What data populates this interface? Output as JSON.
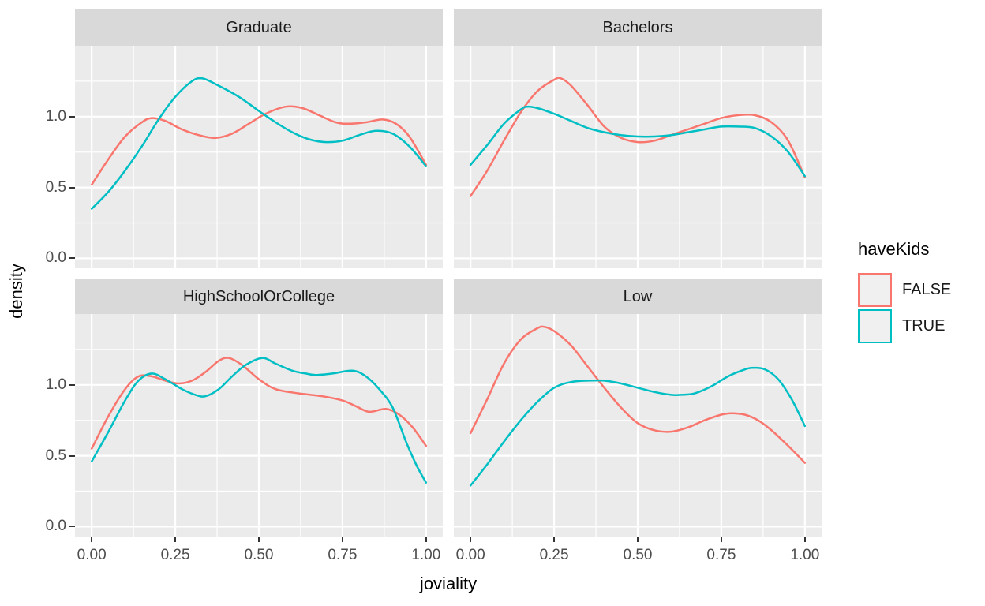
{
  "chart_data": {
    "type": "line",
    "subtype": "density-facets",
    "xlabel": "joviality",
    "ylabel": "density",
    "xlim": [
      -0.05,
      1.05
    ],
    "ylim": [
      -0.07,
      1.5
    ],
    "x_ticks": {
      "values": [
        0,
        0.25,
        0.5,
        0.75,
        1.0
      ],
      "labels": [
        "0.00",
        "0.25",
        "0.50",
        "0.75",
        "1.00"
      ]
    },
    "y_ticks": {
      "values": [
        0,
        0.5,
        1.0
      ],
      "labels": [
        "0.0",
        "0.5",
        "1.0"
      ]
    },
    "x_minor": [
      0.125,
      0.375,
      0.625,
      0.875
    ],
    "y_minor": [
      0.25,
      0.75,
      1.25
    ],
    "grid": "on",
    "colors": {
      "panel_bg": "#EBEBEB",
      "strip_bg": "#D9D9D9",
      "gridline": "#FFFFFF",
      "tick_mark": "#333333",
      "tick_text": "#4d4d4d",
      "series_false": "#F8766D",
      "series_true": "#00BFC4",
      "legend_key_fill": "#F0F0F0"
    },
    "legend": {
      "title": "haveKids",
      "position": "right",
      "entries": [
        {
          "label": "FALSE",
          "color": "#F8766D"
        },
        {
          "label": "TRUE",
          "color": "#00BFC4"
        }
      ]
    },
    "facets": [
      {
        "label": "Graduate",
        "series": [
          {
            "name": "FALSE",
            "color": "#F8766D",
            "points": [
              [
                0,
                0.52
              ],
              [
                0.05,
                0.7
              ],
              [
                0.1,
                0.86
              ],
              [
                0.15,
                0.96
              ],
              [
                0.18,
                0.99
              ],
              [
                0.22,
                0.97
              ],
              [
                0.27,
                0.91
              ],
              [
                0.32,
                0.87
              ],
              [
                0.37,
                0.85
              ],
              [
                0.42,
                0.88
              ],
              [
                0.47,
                0.95
              ],
              [
                0.52,
                1.02
              ],
              [
                0.58,
                1.07
              ],
              [
                0.63,
                1.06
              ],
              [
                0.68,
                1.01
              ],
              [
                0.73,
                0.96
              ],
              [
                0.77,
                0.95
              ],
              [
                0.82,
                0.96
              ],
              [
                0.87,
                0.98
              ],
              [
                0.91,
                0.95
              ],
              [
                0.95,
                0.86
              ],
              [
                1.0,
                0.66
              ]
            ]
          },
          {
            "name": "TRUE",
            "color": "#00BFC4",
            "points": [
              [
                0,
                0.35
              ],
              [
                0.05,
                0.47
              ],
              [
                0.1,
                0.62
              ],
              [
                0.15,
                0.79
              ],
              [
                0.2,
                0.98
              ],
              [
                0.25,
                1.14
              ],
              [
                0.3,
                1.25
              ],
              [
                0.33,
                1.27
              ],
              [
                0.37,
                1.23
              ],
              [
                0.44,
                1.14
              ],
              [
                0.5,
                1.04
              ],
              [
                0.55,
                0.96
              ],
              [
                0.6,
                0.89
              ],
              [
                0.65,
                0.84
              ],
              [
                0.7,
                0.82
              ],
              [
                0.75,
                0.83
              ],
              [
                0.8,
                0.87
              ],
              [
                0.85,
                0.9
              ],
              [
                0.9,
                0.88
              ],
              [
                0.95,
                0.79
              ],
              [
                1.0,
                0.65
              ]
            ]
          }
        ]
      },
      {
        "label": "Bachelors",
        "series": [
          {
            "name": "FALSE",
            "color": "#F8766D",
            "points": [
              [
                0,
                0.44
              ],
              [
                0.05,
                0.62
              ],
              [
                0.1,
                0.83
              ],
              [
                0.15,
                1.03
              ],
              [
                0.2,
                1.18
              ],
              [
                0.25,
                1.26
              ],
              [
                0.27,
                1.27
              ],
              [
                0.3,
                1.22
              ],
              [
                0.35,
                1.08
              ],
              [
                0.4,
                0.93
              ],
              [
                0.45,
                0.85
              ],
              [
                0.5,
                0.82
              ],
              [
                0.55,
                0.83
              ],
              [
                0.6,
                0.87
              ],
              [
                0.65,
                0.91
              ],
              [
                0.7,
                0.95
              ],
              [
                0.75,
                0.99
              ],
              [
                0.8,
                1.01
              ],
              [
                0.85,
                1.01
              ],
              [
                0.9,
                0.96
              ],
              [
                0.95,
                0.83
              ],
              [
                1.0,
                0.57
              ]
            ]
          },
          {
            "name": "TRUE",
            "color": "#00BFC4",
            "points": [
              [
                0,
                0.66
              ],
              [
                0.05,
                0.8
              ],
              [
                0.1,
                0.95
              ],
              [
                0.15,
                1.05
              ],
              [
                0.17,
                1.07
              ],
              [
                0.2,
                1.06
              ],
              [
                0.25,
                1.02
              ],
              [
                0.3,
                0.97
              ],
              [
                0.35,
                0.92
              ],
              [
                0.4,
                0.89
              ],
              [
                0.45,
                0.87
              ],
              [
                0.5,
                0.86
              ],
              [
                0.55,
                0.86
              ],
              [
                0.6,
                0.87
              ],
              [
                0.65,
                0.89
              ],
              [
                0.7,
                0.91
              ],
              [
                0.75,
                0.93
              ],
              [
                0.8,
                0.93
              ],
              [
                0.85,
                0.92
              ],
              [
                0.9,
                0.86
              ],
              [
                0.95,
                0.75
              ],
              [
                1.0,
                0.58
              ]
            ]
          }
        ]
      },
      {
        "label": "HighSchoolOrCollege",
        "series": [
          {
            "name": "FALSE",
            "color": "#F8766D",
            "points": [
              [
                0,
                0.55
              ],
              [
                0.05,
                0.78
              ],
              [
                0.1,
                0.97
              ],
              [
                0.14,
                1.06
              ],
              [
                0.18,
                1.06
              ],
              [
                0.22,
                1.03
              ],
              [
                0.26,
                1.01
              ],
              [
                0.3,
                1.03
              ],
              [
                0.34,
                1.09
              ],
              [
                0.38,
                1.17
              ],
              [
                0.41,
                1.19
              ],
              [
                0.45,
                1.14
              ],
              [
                0.5,
                1.04
              ],
              [
                0.55,
                0.97
              ],
              [
                0.62,
                0.94
              ],
              [
                0.69,
                0.92
              ],
              [
                0.75,
                0.89
              ],
              [
                0.79,
                0.85
              ],
              [
                0.83,
                0.81
              ],
              [
                0.88,
                0.83
              ],
              [
                0.92,
                0.79
              ],
              [
                0.96,
                0.7
              ],
              [
                1.0,
                0.57
              ]
            ]
          },
          {
            "name": "TRUE",
            "color": "#00BFC4",
            "points": [
              [
                0,
                0.46
              ],
              [
                0.05,
                0.67
              ],
              [
                0.1,
                0.89
              ],
              [
                0.14,
                1.03
              ],
              [
                0.18,
                1.08
              ],
              [
                0.22,
                1.04
              ],
              [
                0.27,
                0.97
              ],
              [
                0.31,
                0.93
              ],
              [
                0.34,
                0.92
              ],
              [
                0.38,
                0.97
              ],
              [
                0.42,
                1.06
              ],
              [
                0.46,
                1.14
              ],
              [
                0.51,
                1.19
              ],
              [
                0.55,
                1.15
              ],
              [
                0.6,
                1.1
              ],
              [
                0.64,
                1.08
              ],
              [
                0.67,
                1.07
              ],
              [
                0.72,
                1.08
              ],
              [
                0.78,
                1.1
              ],
              [
                0.82,
                1.06
              ],
              [
                0.86,
                0.97
              ],
              [
                0.9,
                0.84
              ],
              [
                0.94,
                0.6
              ],
              [
                0.97,
                0.44
              ],
              [
                1.0,
                0.31
              ]
            ]
          }
        ]
      },
      {
        "label": "Low",
        "series": [
          {
            "name": "FALSE",
            "color": "#F8766D",
            "points": [
              [
                0,
                0.66
              ],
              [
                0.05,
                0.9
              ],
              [
                0.1,
                1.15
              ],
              [
                0.15,
                1.32
              ],
              [
                0.2,
                1.4
              ],
              [
                0.22,
                1.41
              ],
              [
                0.25,
                1.38
              ],
              [
                0.3,
                1.28
              ],
              [
                0.35,
                1.13
              ],
              [
                0.4,
                0.98
              ],
              [
                0.45,
                0.84
              ],
              [
                0.5,
                0.73
              ],
              [
                0.55,
                0.68
              ],
              [
                0.6,
                0.67
              ],
              [
                0.65,
                0.7
              ],
              [
                0.7,
                0.75
              ],
              [
                0.75,
                0.79
              ],
              [
                0.78,
                0.8
              ],
              [
                0.82,
                0.79
              ],
              [
                0.86,
                0.75
              ],
              [
                0.9,
                0.68
              ],
              [
                0.95,
                0.57
              ],
              [
                1.0,
                0.45
              ]
            ]
          },
          {
            "name": "TRUE",
            "color": "#00BFC4",
            "points": [
              [
                0,
                0.29
              ],
              [
                0.05,
                0.44
              ],
              [
                0.1,
                0.6
              ],
              [
                0.15,
                0.75
              ],
              [
                0.2,
                0.88
              ],
              [
                0.25,
                0.98
              ],
              [
                0.3,
                1.02
              ],
              [
                0.35,
                1.03
              ],
              [
                0.4,
                1.03
              ],
              [
                0.45,
                1.01
              ],
              [
                0.5,
                0.98
              ],
              [
                0.55,
                0.95
              ],
              [
                0.6,
                0.93
              ],
              [
                0.63,
                0.93
              ],
              [
                0.67,
                0.94
              ],
              [
                0.72,
                0.99
              ],
              [
                0.77,
                1.06
              ],
              [
                0.81,
                1.1
              ],
              [
                0.84,
                1.12
              ],
              [
                0.88,
                1.11
              ],
              [
                0.92,
                1.04
              ],
              [
                0.96,
                0.9
              ],
              [
                1.0,
                0.71
              ]
            ]
          }
        ]
      }
    ]
  }
}
